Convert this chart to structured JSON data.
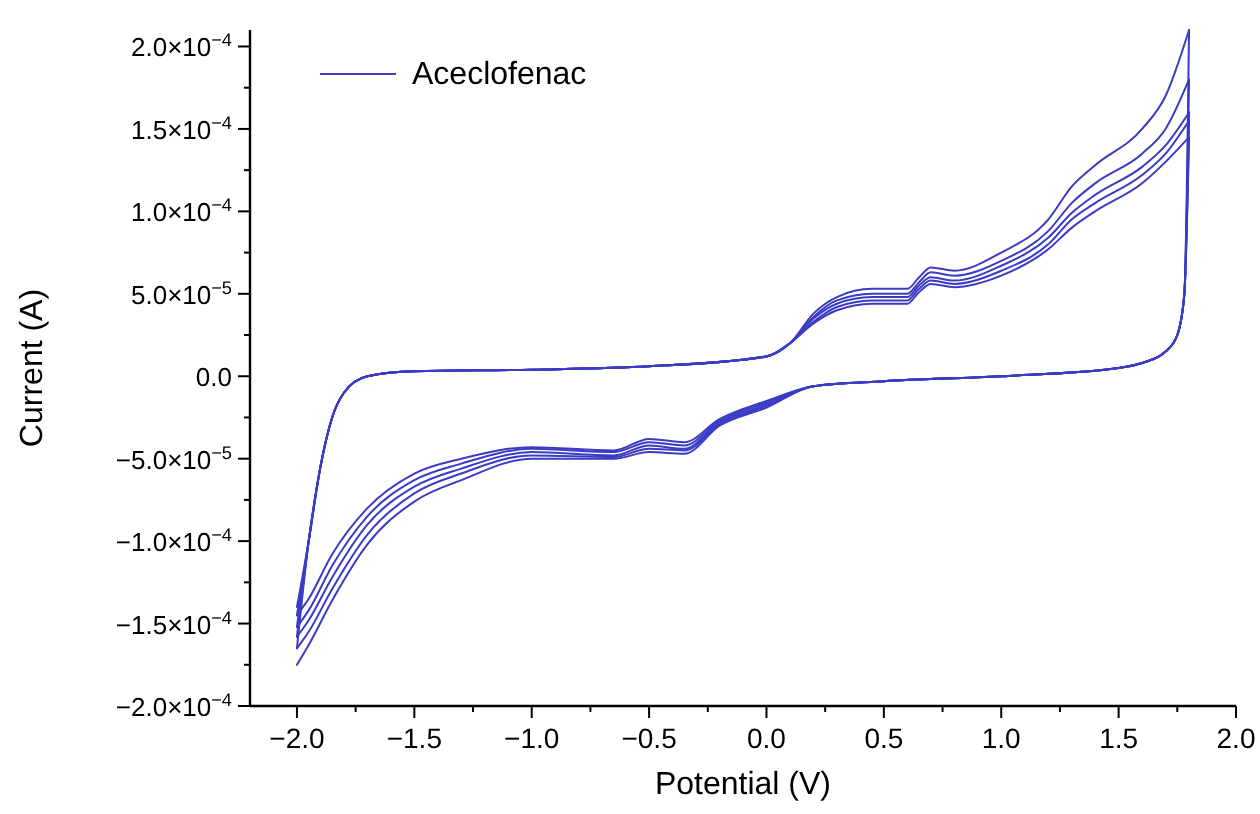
{
  "chart_data": {
    "type": "line",
    "xlabel": "Potential (V)",
    "ylabel": "Current (A)",
    "xlim": [
      -2.2,
      2.0
    ],
    "ylim": [
      -0.0002,
      0.00021
    ],
    "xticks": [
      {
        "value": -2,
        "label": "−2.0"
      },
      {
        "value": -1.75,
        "label": null
      },
      {
        "value": -1.5,
        "label": "−1.5"
      },
      {
        "value": -1.25,
        "label": null
      },
      {
        "value": -1,
        "label": "−1.0"
      },
      {
        "value": -0.75,
        "label": null
      },
      {
        "value": -0.5,
        "label": "−0.5"
      },
      {
        "value": -0.25,
        "label": null
      },
      {
        "value": 0,
        "label": "0.0"
      },
      {
        "value": 0.25,
        "label": null
      },
      {
        "value": 0.5,
        "label": "0.5"
      },
      {
        "value": 0.75,
        "label": null
      },
      {
        "value": 1,
        "label": "1.0"
      },
      {
        "value": 1.25,
        "label": null
      },
      {
        "value": 1.5,
        "label": "1.5"
      },
      {
        "value": 1.75,
        "label": null
      },
      {
        "value": 2,
        "label": "2.0"
      }
    ],
    "yticks": [
      {
        "value": -0.0002,
        "label": "−2.0×10$^{−4}$"
      },
      {
        "value": -0.000175,
        "label": null
      },
      {
        "value": -0.00015,
        "label": "−1.5×10$^{−4}$"
      },
      {
        "value": -0.000125,
        "label": null
      },
      {
        "value": -0.0001,
        "label": "−1.0×10$^{−4}$"
      },
      {
        "value": -7.5e-05,
        "label": null
      },
      {
        "value": -5e-05,
        "label": "−5.0×10$^{−5}$"
      },
      {
        "value": -2.5e-05,
        "label": null
      },
      {
        "value": 0,
        "label": "0.0"
      },
      {
        "value": 2.5e-05,
        "label": null
      },
      {
        "value": 5e-05,
        "label": "5.0×10$^{−5}$"
      },
      {
        "value": 7.5e-05,
        "label": null
      },
      {
        "value": 0.0001,
        "label": "1.0×10$^{−4}$"
      },
      {
        "value": 0.000125,
        "label": null
      },
      {
        "value": 0.00015,
        "label": "1.5×10$^{−4}$"
      },
      {
        "value": 0.000175,
        "label": null
      },
      {
        "value": 0.0002,
        "label": "2.0×10$^{−4}$"
      }
    ],
    "grid": false,
    "legend": "top left",
    "marker": "none",
    "line_style": "solid",
    "series": [
      {
        "name": "Aceclofenac",
        "color": "#3b3bc4",
        "x": [
          -2.0,
          -1.95,
          -1.9,
          -1.85,
          -1.8,
          -1.7,
          -1.5,
          -1.0,
          -0.5,
          0.0,
          0.1,
          0.2,
          0.3,
          0.45,
          0.6,
          0.65,
          0.7,
          0.8,
          1.0,
          1.2,
          1.3,
          1.4,
          1.6,
          1.7,
          1.8
        ],
        "values": [
          -0.00014,
          -0.0001,
          -5.5e-05,
          -2.5e-05,
          -1e-05,
          0,
          3e-06,
          4e-06,
          6e-06,
          1.2e-05,
          2e-05,
          3.8e-05,
          4.8e-05,
          5.3e-05,
          5.3e-05,
          6e-05,
          6.6e-05,
          6.4e-05,
          7.5e-05,
          9.5e-05,
          0.000115,
          0.000128,
          0.00015,
          0.00017,
          0.00021
        ]
      },
      {
        "color": "#3b3bc4",
        "x": [
          1.8,
          1.78,
          1.75,
          1.7,
          1.6,
          1.5,
          1.0,
          0.5,
          0.2,
          0.0,
          -0.2,
          -0.35,
          -0.5,
          -0.65,
          -1.0,
          -1.3,
          -1.5,
          -1.7,
          -1.85,
          -1.95,
          -2.0
        ],
        "values": [
          0.00021,
          5e-05,
          2.5e-05,
          1.5e-05,
          8e-06,
          5e-06,
          0,
          -3e-06,
          -6e-06,
          -1.5e-05,
          -2.6e-05,
          -4e-05,
          -3.8e-05,
          -4.5e-05,
          -4.3e-05,
          -5e-05,
          -5.9e-05,
          -8e-05,
          -0.000108,
          -0.000135,
          -0.000145
        ]
      },
      {
        "color": "#3b3bc4",
        "x": [
          -2.0,
          -1.95,
          -1.9,
          -1.85,
          -1.8,
          -1.7,
          -1.5,
          -1.0,
          -0.5,
          0.0,
          0.1,
          0.2,
          0.3,
          0.45,
          0.6,
          0.65,
          0.7,
          0.8,
          1.0,
          1.2,
          1.3,
          1.4,
          1.6,
          1.7,
          1.8
        ],
        "values": [
          -0.000145,
          -0.0001,
          -5.5e-05,
          -2.5e-05,
          -1e-05,
          0,
          3e-06,
          4e-06,
          6e-06,
          1.2e-05,
          2e-05,
          3.6e-05,
          4.6e-05,
          5e-05,
          5e-05,
          5.7e-05,
          6.3e-05,
          6.1e-05,
          7e-05,
          8.8e-05,
          0.000105,
          0.000117,
          0.000135,
          0.00015,
          0.00018
        ]
      },
      {
        "color": "#3b3bc4",
        "x": [
          1.8,
          1.78,
          1.75,
          1.7,
          1.6,
          1.5,
          1.0,
          0.5,
          0.2,
          0.0,
          -0.2,
          -0.35,
          -0.5,
          -0.65,
          -1.0,
          -1.3,
          -1.5,
          -1.7,
          -1.85,
          -1.95,
          -2.0
        ],
        "values": [
          0.00018,
          5e-05,
          2.5e-05,
          1.5e-05,
          8e-06,
          5e-06,
          0,
          -3e-06,
          -6e-06,
          -1.6e-05,
          -2.7e-05,
          -4.2e-05,
          -4e-05,
          -4.6e-05,
          -4.4e-05,
          -5.3e-05,
          -6.3e-05,
          -8.5e-05,
          -0.000115,
          -0.000142,
          -0.000152
        ]
      },
      {
        "color": "#3b3bc4",
        "x": [
          -2.0,
          -1.95,
          -1.9,
          -1.85,
          -1.8,
          -1.7,
          -1.5,
          -1.0,
          -0.5,
          0.0,
          0.1,
          0.2,
          0.3,
          0.45,
          0.6,
          0.65,
          0.7,
          0.8,
          1.0,
          1.2,
          1.3,
          1.4,
          1.6,
          1.7,
          1.8
        ],
        "values": [
          -0.000152,
          -0.0001,
          -5.5e-05,
          -2.5e-05,
          -1e-05,
          0,
          3e-06,
          4e-06,
          6e-06,
          1.2e-05,
          2e-05,
          3.5e-05,
          4.4e-05,
          4.8e-05,
          4.8e-05,
          5.5e-05,
          6e-05,
          5.8e-05,
          6.7e-05,
          8.4e-05,
          9.9e-05,
          0.00011,
          0.000127,
          0.00014,
          0.00016
        ]
      },
      {
        "color": "#3b3bc4",
        "x": [
          1.8,
          1.78,
          1.75,
          1.7,
          1.6,
          1.5,
          1.0,
          0.5,
          0.2,
          0.0,
          -0.2,
          -0.35,
          -0.5,
          -0.65,
          -1.0,
          -1.3,
          -1.5,
          -1.7,
          -1.85,
          -1.95,
          -2.0
        ],
        "values": [
          0.00016,
          5e-05,
          2.5e-05,
          1.5e-05,
          8e-06,
          5e-06,
          0,
          -3e-06,
          -6e-06,
          -1.7e-05,
          -2.8e-05,
          -4.4e-05,
          -4.2e-05,
          -4.8e-05,
          -4.6e-05,
          -5.6e-05,
          -6.7e-05,
          -9e-05,
          -0.000122,
          -0.000148,
          -0.000158
        ]
      },
      {
        "color": "#3b3bc4",
        "x": [
          -2.0,
          -1.95,
          -1.9,
          -1.85,
          -1.8,
          -1.7,
          -1.5,
          -1.0,
          -0.5,
          0.0,
          0.1,
          0.2,
          0.3,
          0.45,
          0.6,
          0.65,
          0.7,
          0.8,
          1.0,
          1.2,
          1.3,
          1.4,
          1.6,
          1.7,
          1.8
        ],
        "values": [
          -0.000158,
          -0.0001,
          -5.5e-05,
          -2.5e-05,
          -1e-05,
          0,
          3e-06,
          4e-06,
          6e-06,
          1.2e-05,
          2e-05,
          3.3e-05,
          4.2e-05,
          4.6e-05,
          4.6e-05,
          5.3e-05,
          5.8e-05,
          5.6e-05,
          6.4e-05,
          8e-05,
          9.5e-05,
          0.000105,
          0.000122,
          0.000135,
          0.000155
        ]
      },
      {
        "color": "#3b3bc4",
        "x": [
          1.8,
          1.78,
          1.75,
          1.7,
          1.6,
          1.5,
          1.0,
          0.5,
          0.2,
          0.0,
          -0.2,
          -0.35,
          -0.5,
          -0.65,
          -1.0,
          -1.3,
          -1.5,
          -1.7,
          -1.85,
          -1.95,
          -2.0
        ],
        "values": [
          0.000155,
          5e-05,
          2.5e-05,
          1.5e-05,
          8e-06,
          5e-06,
          0,
          -3e-06,
          -6e-06,
          -1.8e-05,
          -2.9e-05,
          -4.5e-05,
          -4.4e-05,
          -4.9e-05,
          -4.8e-05,
          -5.9e-05,
          -7.1e-05,
          -9.6e-05,
          -0.000129,
          -0.000155,
          -0.000165
        ]
      },
      {
        "color": "#3b3bc4",
        "x": [
          -2.0,
          -1.95,
          -1.9,
          -1.85,
          -1.8,
          -1.7,
          -1.5,
          -1.0,
          -0.5,
          0.0,
          0.1,
          0.2,
          0.3,
          0.45,
          0.6,
          0.65,
          0.7,
          0.8,
          1.0,
          1.2,
          1.3,
          1.4,
          1.6,
          1.7,
          1.8
        ],
        "values": [
          -0.000165,
          -0.0001,
          -5.5e-05,
          -2.5e-05,
          -1e-05,
          0,
          3e-06,
          4e-06,
          6e-06,
          1.2e-05,
          2e-05,
          3.2e-05,
          4e-05,
          4.4e-05,
          4.4e-05,
          5.1e-05,
          5.6e-05,
          5.4e-05,
          6.1e-05,
          7.7e-05,
          9e-05,
          0.0001,
          0.000117,
          0.00013,
          0.000145
        ]
      },
      {
        "color": "#3b3bc4",
        "x": [
          1.8,
          1.78,
          1.75,
          1.7,
          1.6,
          1.5,
          1.0,
          0.5,
          0.2,
          0.0,
          -0.2,
          -0.35,
          -0.5,
          -0.65,
          -1.0,
          -1.3,
          -1.5,
          -1.7,
          -1.85,
          -1.95,
          -2.0
        ],
        "values": [
          0.000145,
          5e-05,
          2.5e-05,
          1.5e-05,
          8e-06,
          5e-06,
          0,
          -3e-06,
          -6e-06,
          -1.9e-05,
          -3e-05,
          -4.7e-05,
          -4.6e-05,
          -5e-05,
          -5e-05,
          -6.3e-05,
          -7.6e-05,
          -0.000102,
          -0.000136,
          -0.000163,
          -0.000175
        ]
      }
    ]
  }
}
